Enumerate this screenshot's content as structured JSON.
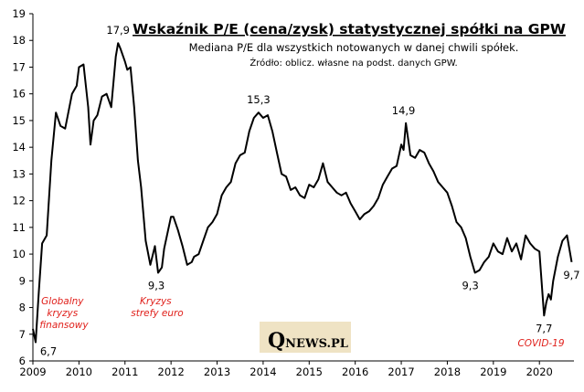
{
  "chart_data": {
    "type": "line",
    "title": "Wskaźnik P/E (cena/zysk) statystycznej spółki na GPW",
    "subtitle": "Mediana P/E dla wszystkich notowanych w danej chwili spółek.",
    "source": "Źródło: oblicz. własne na podst. danych GPW.",
    "xlabel": "",
    "ylabel": "",
    "xlim": [
      2009,
      2020.75
    ],
    "ylim": [
      6,
      19
    ],
    "x_ticks": [
      "2009",
      "2010",
      "2011",
      "2012",
      "2013",
      "2014",
      "2015",
      "2016",
      "2017",
      "2018",
      "2019",
      "2020"
    ],
    "y_ticks": [
      "6",
      "7",
      "8",
      "9",
      "10",
      "11",
      "12",
      "13",
      "14",
      "15",
      "16",
      "17",
      "18",
      "19"
    ],
    "grid": false,
    "line_color": "#000000",
    "series": [
      {
        "x": [
          2009.0,
          2009.06,
          2009.13,
          2009.2,
          2009.3,
          2009.4,
          2009.5,
          2009.6,
          2009.7,
          2009.85,
          2009.95,
          2010.0,
          2010.1,
          2010.2,
          2010.25,
          2010.32,
          2010.4,
          2010.5,
          2010.6,
          2010.7,
          2010.8,
          2010.85,
          2010.9,
          2011.0,
          2011.05,
          2011.12,
          2011.2,
          2011.28,
          2011.35,
          2011.45,
          2011.55,
          2011.65,
          2011.72,
          2011.8,
          2011.85,
          2011.9,
          2012.0,
          2012.05,
          2012.15,
          2012.25,
          2012.35,
          2012.45,
          2012.5,
          2012.6,
          2012.7,
          2012.8,
          2012.9,
          2013.0,
          2013.1,
          2013.2,
          2013.3,
          2013.4,
          2013.5,
          2013.6,
          2013.7,
          2013.8,
          2013.9,
          2014.0,
          2014.1,
          2014.2,
          2014.3,
          2014.4,
          2014.5,
          2014.6,
          2014.7,
          2014.8,
          2014.9,
          2015.0,
          2015.1,
          2015.2,
          2015.3,
          2015.4,
          2015.5,
          2015.6,
          2015.7,
          2015.8,
          2015.9,
          2016.0,
          2016.1,
          2016.2,
          2016.3,
          2016.4,
          2016.5,
          2016.6,
          2016.7,
          2016.8,
          2016.9,
          2017.0,
          2017.05,
          2017.1,
          2017.2,
          2017.3,
          2017.4,
          2017.5,
          2017.6,
          2017.7,
          2017.8,
          2017.9,
          2018.0,
          2018.1,
          2018.2,
          2018.3,
          2018.4,
          2018.5,
          2018.6,
          2018.7,
          2018.8,
          2018.9,
          2019.0,
          2019.1,
          2019.2,
          2019.3,
          2019.4,
          2019.5,
          2019.6,
          2019.7,
          2019.8,
          2019.9,
          2020.0,
          2020.1,
          2020.15,
          2020.2,
          2020.25,
          2020.3,
          2020.4,
          2020.5,
          2020.6,
          2020.7
        ],
        "y": [
          7.2,
          6.7,
          8.6,
          10.4,
          10.7,
          13.5,
          15.3,
          14.8,
          14.7,
          16.0,
          16.3,
          17.0,
          17.1,
          15.5,
          14.1,
          15.0,
          15.2,
          15.9,
          16.0,
          15.5,
          17.4,
          17.9,
          17.7,
          17.2,
          16.9,
          17.0,
          15.5,
          13.5,
          12.5,
          10.5,
          9.6,
          10.3,
          9.3,
          9.5,
          10.2,
          10.6,
          11.4,
          11.4,
          10.9,
          10.3,
          9.6,
          9.7,
          9.9,
          10.0,
          10.5,
          11.0,
          11.2,
          11.5,
          12.2,
          12.5,
          12.7,
          13.4,
          13.7,
          13.8,
          14.6,
          15.1,
          15.3,
          15.1,
          15.2,
          14.6,
          13.8,
          13.0,
          12.9,
          12.4,
          12.5,
          12.2,
          12.1,
          12.6,
          12.5,
          12.8,
          13.4,
          12.7,
          12.5,
          12.3,
          12.2,
          12.3,
          11.9,
          11.6,
          11.3,
          11.5,
          11.6,
          11.8,
          12.1,
          12.6,
          12.9,
          13.2,
          13.3,
          14.1,
          13.9,
          14.9,
          13.7,
          13.6,
          13.9,
          13.8,
          13.4,
          13.1,
          12.7,
          12.5,
          12.3,
          11.8,
          11.2,
          11.0,
          10.6,
          9.9,
          9.3,
          9.4,
          9.7,
          9.9,
          10.4,
          10.1,
          10.0,
          10.6,
          10.1,
          10.4,
          9.8,
          10.7,
          10.4,
          10.2,
          10.1,
          7.7,
          8.2,
          8.5,
          8.3,
          9.0,
          9.9,
          10.5,
          10.7,
          9.7
        ]
      }
    ],
    "value_labels": [
      {
        "text": "6,7",
        "x": 2009.06,
        "y": 6.7
      },
      {
        "text": "17,9",
        "x": 2010.85,
        "y": 17.9
      },
      {
        "text": "9,3",
        "x": 2011.72,
        "y": 9.3
      },
      {
        "text": "15,3",
        "x": 2013.9,
        "y": 15.3
      },
      {
        "text": "14,9",
        "x": 2017.05,
        "y": 14.9
      },
      {
        "text": "9,3",
        "x": 2018.5,
        "y": 9.3
      },
      {
        "text": "7,7",
        "x": 2020.1,
        "y": 7.7
      },
      {
        "text": "9,7",
        "x": 2020.7,
        "y": 9.7
      }
    ],
    "annotations": [
      {
        "lines": [
          "Globalny",
          "kryzys",
          "finansowy"
        ],
        "color": "#e0201b"
      },
      {
        "lines": [
          "Kryzys",
          "strefy euro"
        ],
        "color": "#e0201b"
      },
      {
        "lines": [
          "COVID-19"
        ],
        "color": "#e0201b"
      }
    ]
  },
  "logo": {
    "q": "Q",
    "rest": "NEWS.PL"
  }
}
